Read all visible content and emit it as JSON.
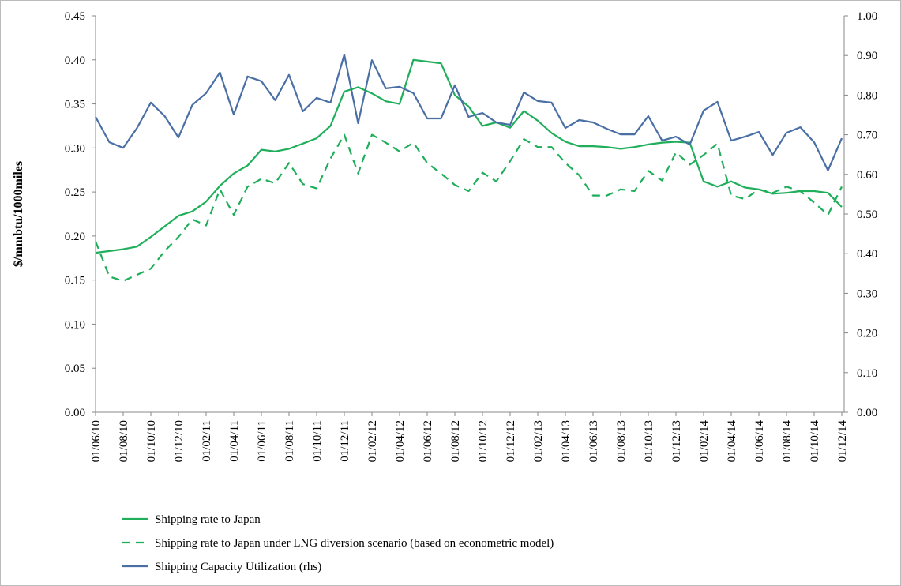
{
  "chart_data": {
    "type": "line",
    "ylabel": "$/mmbtu/1000miles",
    "categories": [
      "01/06/10",
      null,
      "01/08/10",
      null,
      "01/10/10",
      null,
      "01/12/10",
      null,
      "01/02/11",
      null,
      "01/04/11",
      null,
      "01/06/11",
      null,
      "01/08/11",
      null,
      "01/10/11",
      null,
      "01/12/11",
      null,
      "01/02/12",
      null,
      "01/04/12",
      null,
      "01/06/12",
      null,
      "01/08/12",
      null,
      "01/10/12",
      null,
      "01/12/12",
      null,
      "01/02/13",
      null,
      "01/04/13",
      null,
      "01/06/13",
      null,
      "01/08/13",
      null,
      "01/10/13",
      null,
      "01/12/13",
      null,
      "01/02/14",
      null,
      "01/04/14",
      null,
      "01/06/14",
      null,
      "01/08/14",
      null,
      "01/10/14",
      null,
      "01/12/14"
    ],
    "ylim": [
      0,
      0.45
    ],
    "yticks": [
      {
        "value": 0,
        "label": "0.00"
      },
      0.05,
      {
        "value": 0.1,
        "label": "0.10"
      },
      0.15,
      {
        "value": 0.2,
        "label": "0.20"
      },
      0.25,
      {
        "value": 0.3,
        "label": "0.30"
      },
      0.35,
      {
        "value": 0.4,
        "label": "0.40"
      },
      0.45
    ],
    "y2lim": [
      0,
      1
    ],
    "y2ticks": [
      {
        "value": 0,
        "label": "0.00"
      },
      {
        "value": 0.1,
        "label": "0.10"
      },
      {
        "value": 0.2,
        "label": "0.20"
      },
      {
        "value": 0.3,
        "label": "0.30"
      },
      {
        "value": 0.4,
        "label": "0.40"
      },
      {
        "value": 0.5,
        "label": "0.50"
      },
      {
        "value": 0.6,
        "label": "0.60"
      },
      {
        "value": 0.7,
        "label": "0.70"
      },
      {
        "value": 0.8,
        "label": "0.80"
      },
      {
        "value": 0.9,
        "label": "0.90"
      },
      {
        "value": 1,
        "label": "1.00"
      }
    ],
    "series": [
      {
        "name": "Shipping rate to Japan",
        "color": "#1fae5a",
        "dashed": false,
        "values": [
          0.181,
          0.183,
          0.185,
          0.188,
          0.199,
          0.211,
          0.223,
          0.228,
          0.239,
          0.257,
          0.271,
          0.28,
          0.298,
          0.296,
          0.299,
          0.305,
          0.311,
          0.325,
          0.364,
          0.369,
          0.362,
          0.353,
          0.35,
          0.4,
          0.398,
          0.396,
          0.36,
          0.347,
          0.325,
          0.329,
          0.323,
          0.342,
          0.331,
          0.317,
          0.307,
          0.302,
          0.302,
          0.301,
          0.299,
          0.301,
          0.304,
          0.306,
          0.307,
          0.306,
          0.262,
          0.256,
          0.262,
          0.255,
          0.253,
          0.248,
          0.249,
          0.251,
          0.251,
          0.249,
          0.233
        ]
      },
      {
        "name": "Shipping rate to Japan under LNG diversion scenario (based on econometric model)",
        "color": "#1fae5a",
        "dashed": true,
        "values": [
          0.194,
          0.154,
          0.149,
          0.156,
          0.163,
          0.183,
          0.199,
          0.219,
          0.212,
          0.253,
          0.224,
          0.256,
          0.265,
          0.26,
          0.283,
          0.259,
          0.254,
          0.288,
          0.315,
          0.271,
          0.315,
          0.306,
          0.296,
          0.306,
          0.283,
          0.271,
          0.258,
          0.251,
          0.272,
          0.262,
          0.285,
          0.31,
          0.301,
          0.301,
          0.283,
          0.269,
          0.246,
          0.246,
          0.253,
          0.251,
          0.274,
          0.263,
          0.295,
          0.281,
          0.292,
          0.305,
          0.246,
          0.242,
          0.253,
          0.249,
          0.256,
          0.251,
          0.238,
          0.224,
          0.256
        ]
      },
      {
        "name": "Shipping Capacity Utilization (rhs)",
        "color": "#4a6fa5",
        "dashed": false,
        "axis": "y2",
        "values": [
          0.745,
          0.681,
          0.667,
          0.717,
          0.781,
          0.747,
          0.693,
          0.775,
          0.805,
          0.857,
          0.751,
          0.847,
          0.835,
          0.787,
          0.851,
          0.759,
          0.793,
          0.781,
          0.902,
          0.729,
          0.888,
          0.817,
          0.821,
          0.805,
          0.741,
          0.741,
          0.825,
          0.745,
          0.755,
          0.731,
          0.725,
          0.807,
          0.785,
          0.781,
          0.717,
          0.737,
          0.731,
          0.715,
          0.701,
          0.701,
          0.747,
          0.685,
          0.695,
          0.675,
          0.761,
          0.783,
          0.685,
          0.695,
          0.707,
          0.649,
          0.705,
          0.719,
          0.681,
          0.61,
          0.691
        ]
      }
    ]
  }
}
